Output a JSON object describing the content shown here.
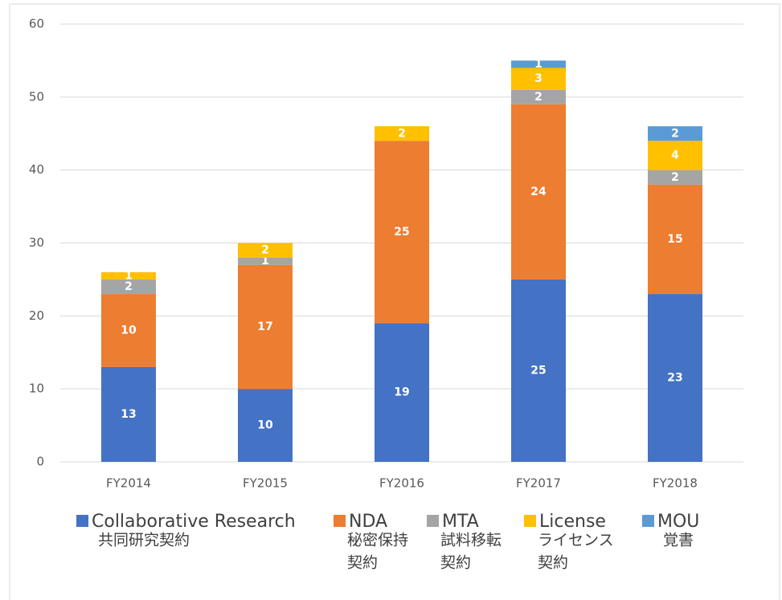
{
  "chart_data": {
    "type": "stacked_bar",
    "categories": [
      "FY2014",
      "FY2015",
      "FY2016",
      "FY2017",
      "FY2018"
    ],
    "series": [
      {
        "name": "Collaborative Research",
        "name_lines": [
          "共同研究契約"
        ],
        "color": "#4472c4",
        "values": [
          13,
          10,
          19,
          25,
          23
        ]
      },
      {
        "name": "NDA",
        "name_lines": [
          "秘密保持",
          "契約"
        ],
        "color": "#ed7d31",
        "values": [
          10,
          17,
          25,
          24,
          15
        ]
      },
      {
        "name": "MTA",
        "name_lines": [
          "試料移転",
          "契約"
        ],
        "color": "#a5a5a5",
        "values": [
          2,
          1,
          null,
          2,
          2
        ]
      },
      {
        "name": "License",
        "name_lines": [
          "ライセンス",
          "契約"
        ],
        "color": "#ffc000",
        "values": [
          1,
          2,
          2,
          3,
          4
        ]
      },
      {
        "name": "MOU",
        "name_lines": [
          "覚書"
        ],
        "color": "#5b9bd5",
        "values": [
          null,
          null,
          null,
          1,
          2
        ]
      }
    ],
    "ylim": [
      0,
      60
    ],
    "yticks": [
      0,
      10,
      20,
      30,
      40,
      50,
      60
    ],
    "grid": true,
    "legend": "bottom"
  }
}
